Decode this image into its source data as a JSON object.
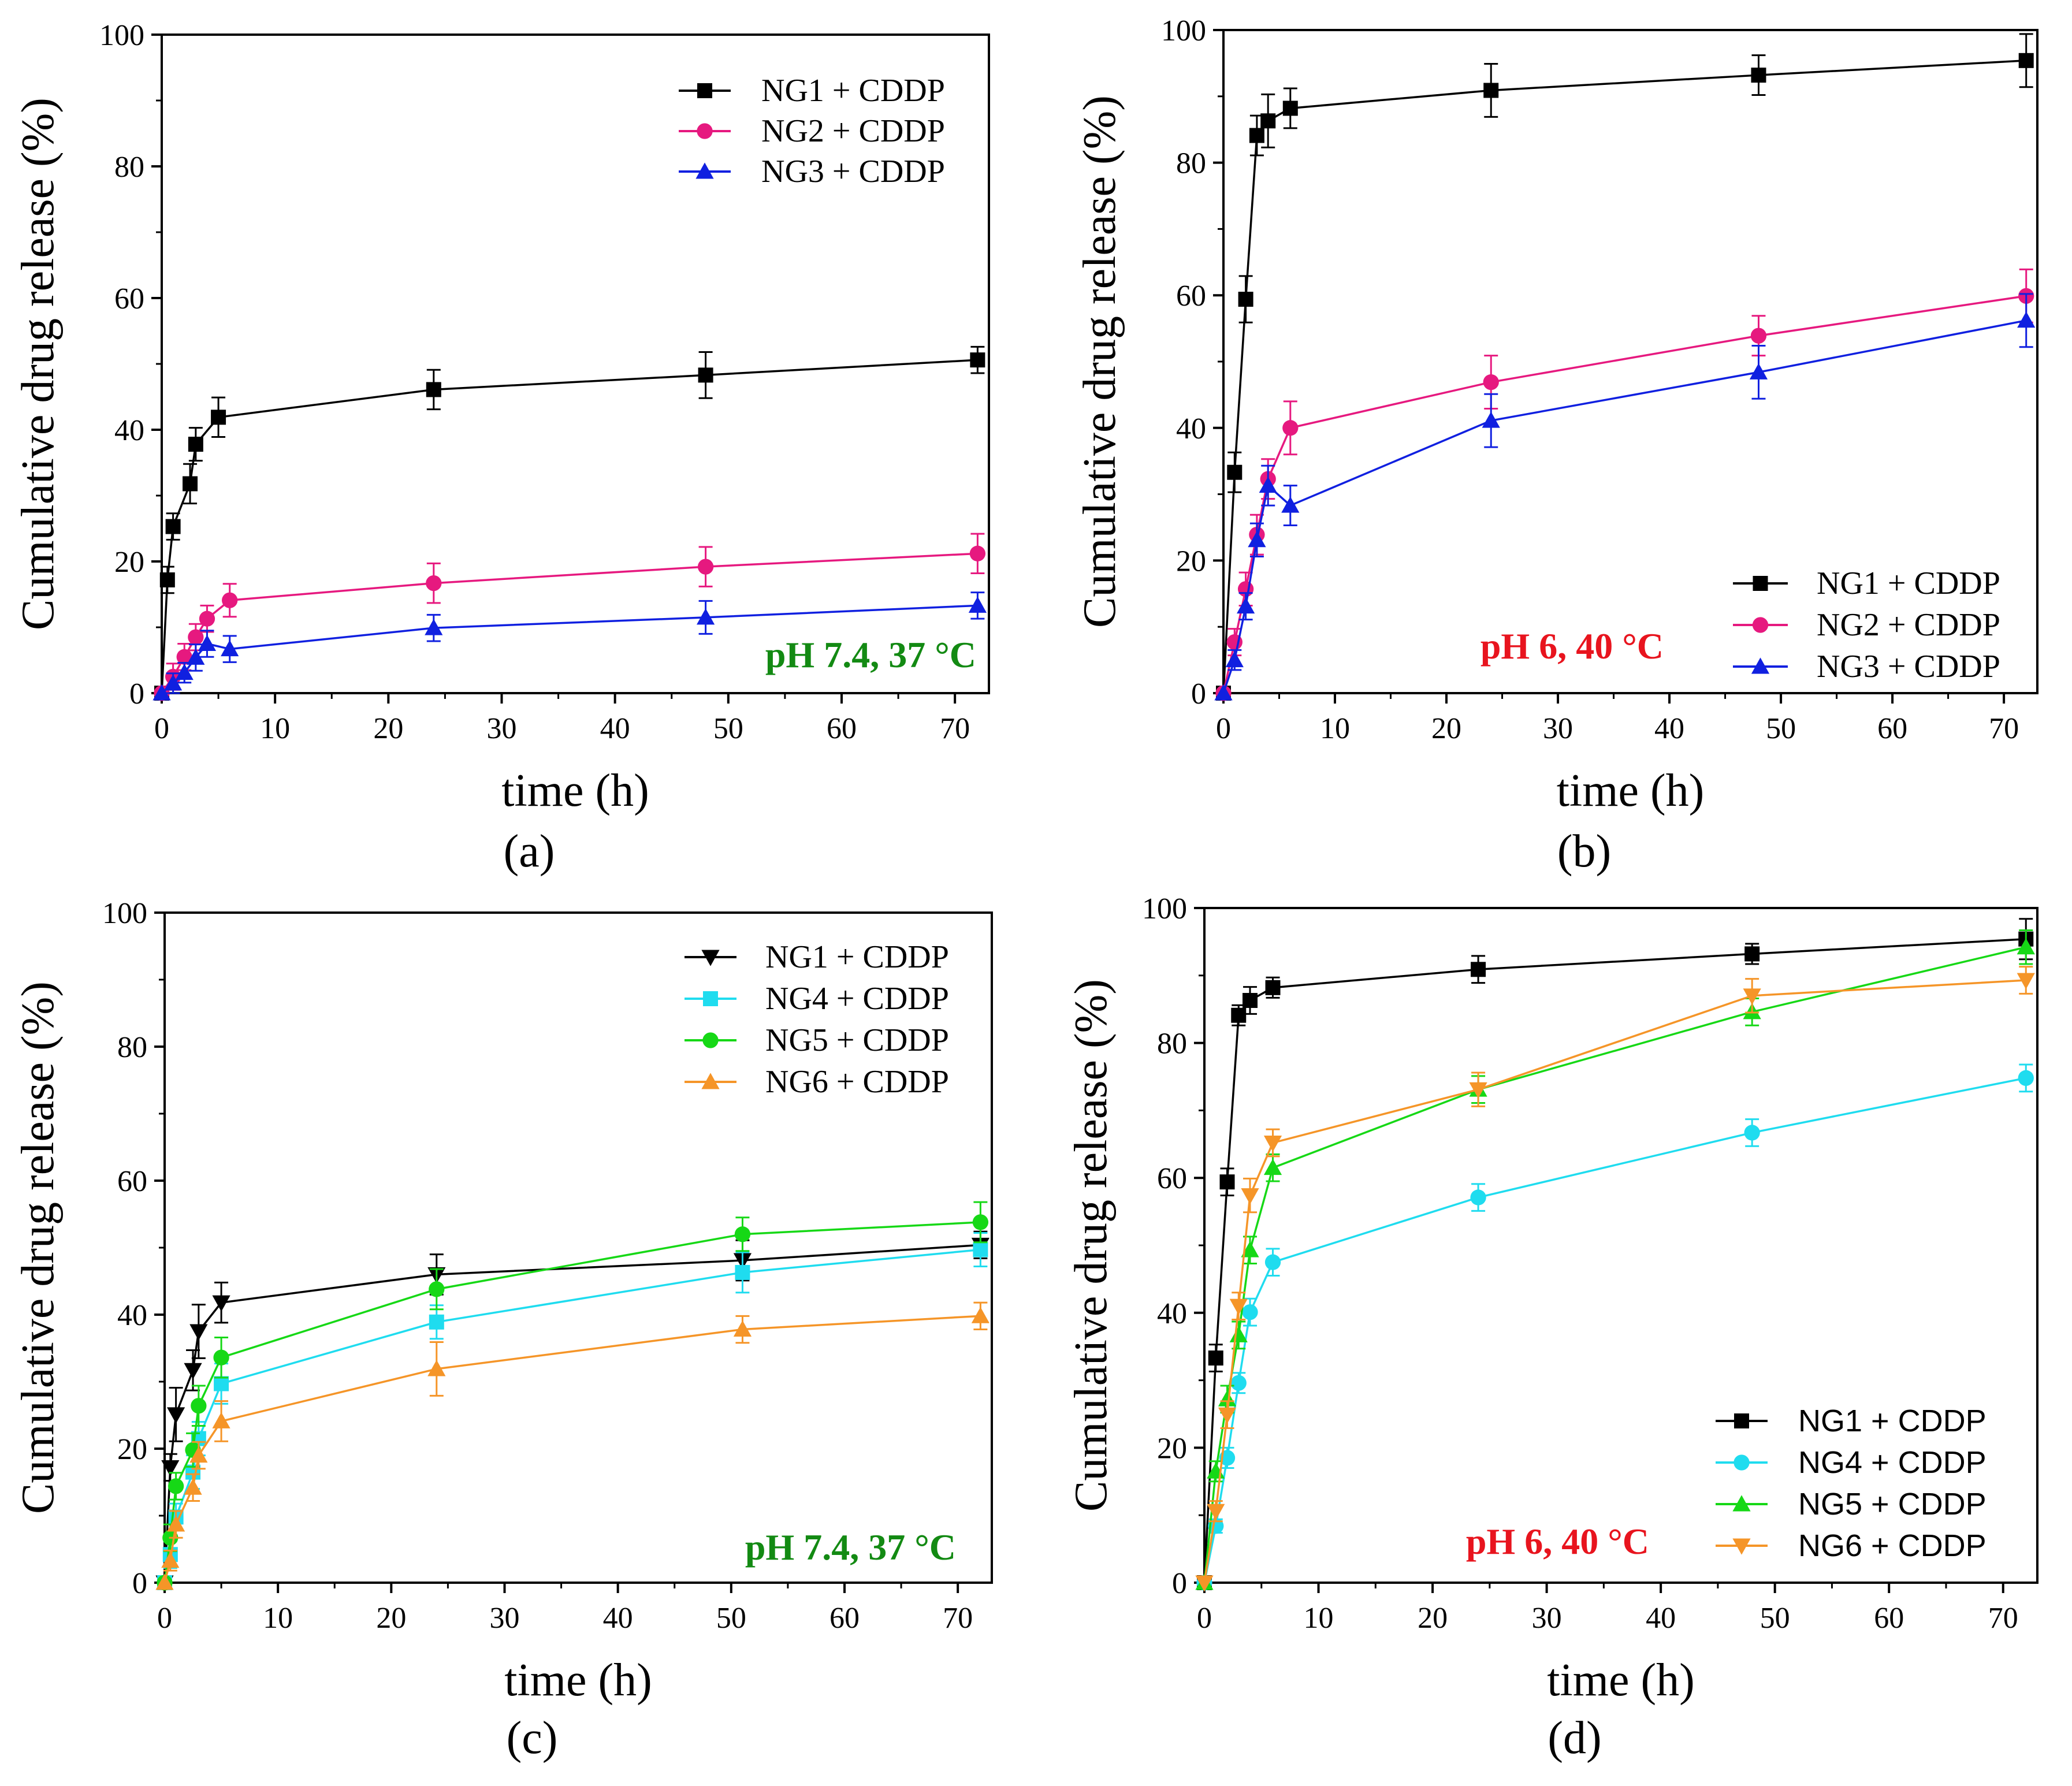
{
  "chart_data": [
    {
      "type": "line",
      "panel_label": "(a)",
      "xlabel": "time (h)",
      "ylabel": "Cumulative drug release (%)",
      "xlim": [
        0,
        73
      ],
      "ylim": [
        0,
        100
      ],
      "xticks": [
        0,
        10,
        20,
        30,
        40,
        50,
        60,
        70
      ],
      "yticks": [
        0,
        20,
        40,
        60,
        80,
        100
      ],
      "annotation": "pH 7.4, 37 °C",
      "annotation_color": "#138a13",
      "legend_position": "top-right",
      "series": [
        {
          "name": "NG1 + CDDP",
          "color": "#000000",
          "marker": "square",
          "x": [
            0,
            0.5,
            1,
            2.5,
            3,
            5,
            24,
            48,
            72
          ],
          "values": [
            0,
            17.2,
            25.3,
            31.8,
            37.8,
            41.9,
            46.1,
            48.3,
            50.6
          ],
          "errors": [
            0,
            2,
            2,
            3,
            2.5,
            3,
            3,
            3.5,
            2
          ]
        },
        {
          "name": "NG2 + CDDP",
          "color": "#e6197f",
          "marker": "circle",
          "x": [
            0,
            1,
            2,
            3,
            4,
            6,
            24,
            48,
            72
          ],
          "values": [
            0,
            2.5,
            5.5,
            8.5,
            11.3,
            14.1,
            16.7,
            19.2,
            21.2
          ],
          "errors": [
            0,
            2,
            2,
            2,
            2,
            2.5,
            3,
            3,
            3
          ]
        },
        {
          "name": "NG3 + CDDP",
          "color": "#1020e0",
          "marker": "triangle-up",
          "x": [
            0,
            1,
            2,
            3,
            4,
            6,
            24,
            48,
            72
          ],
          "values": [
            0,
            1.5,
            3.1,
            5.4,
            7.5,
            6.7,
            9.9,
            11.5,
            13.3
          ],
          "errors": [
            0,
            1.5,
            1.5,
            2,
            2,
            2,
            2,
            2.5,
            2
          ]
        }
      ]
    },
    {
      "type": "line",
      "panel_label": "(b)",
      "xlabel": "time (h)",
      "ylabel": "Cumulative drug release (%)",
      "xlim": [
        0,
        73
      ],
      "ylim": [
        0,
        100
      ],
      "xticks": [
        0,
        10,
        20,
        30,
        40,
        50,
        60,
        70
      ],
      "yticks": [
        0,
        20,
        40,
        60,
        80,
        100
      ],
      "annotation": "pH 6, 40 °C",
      "annotation_color": "#e8141e",
      "legend_position": "bottom-right",
      "series": [
        {
          "name": "NG1 + CDDP",
          "color": "#000000",
          "marker": "square",
          "x": [
            0,
            1,
            2,
            3,
            4,
            6,
            24,
            48,
            72
          ],
          "values": [
            0,
            33.3,
            59.4,
            84.1,
            86.3,
            88.2,
            90.9,
            93.2,
            95.4
          ],
          "errors": [
            0,
            3,
            3.5,
            3,
            4,
            3,
            4,
            3,
            4
          ]
        },
        {
          "name": "NG2 + CDDP",
          "color": "#e6197f",
          "marker": "circle",
          "x": [
            0,
            1,
            2,
            3,
            4,
            6,
            24,
            48,
            72
          ],
          "values": [
            0,
            7.7,
            15.7,
            23.9,
            32.3,
            40.0,
            46.9,
            53.9,
            59.9
          ],
          "errors": [
            0,
            2,
            2.5,
            3,
            3,
            4,
            4,
            3,
            4
          ]
        },
        {
          "name": "NG3 + CDDP",
          "color": "#1020e0",
          "marker": "triangle-up",
          "x": [
            0,
            1,
            2,
            3,
            4,
            6,
            24,
            48,
            72
          ],
          "values": [
            0,
            5.0,
            13.1,
            23.1,
            31.3,
            28.3,
            41.1,
            48.4,
            56.2
          ],
          "errors": [
            0,
            1.5,
            2,
            2.5,
            3,
            3,
            4,
            4,
            4
          ]
        }
      ]
    },
    {
      "type": "line",
      "panel_label": "(c)",
      "xlabel": "time (h)",
      "ylabel": "Cumulative drug release (%)",
      "xlim": [
        0,
        73
      ],
      "ylim": [
        0,
        100
      ],
      "xticks": [
        0,
        10,
        20,
        30,
        40,
        50,
        60,
        70
      ],
      "yticks": [
        0,
        20,
        40,
        60,
        80,
        100
      ],
      "annotation": "pH 7.4, 37 °C",
      "annotation_color": "#138a13",
      "legend_position": "top-right",
      "series": [
        {
          "name": "NG1 + CDDP",
          "color": "#000000",
          "marker": "triangle-down",
          "x": [
            0,
            0.5,
            1,
            2.5,
            3,
            5,
            24,
            51,
            72
          ],
          "values": [
            0,
            17.2,
            25.1,
            31.7,
            37.5,
            41.8,
            46.0,
            48.1,
            50.4
          ],
          "errors": [
            0,
            2,
            4,
            3,
            4,
            3,
            3,
            3,
            2
          ]
        },
        {
          "name": "NG4 + CDDP",
          "color": "#1fdcef",
          "marker": "square",
          "x": [
            0,
            0.5,
            1,
            2.5,
            3,
            5,
            24,
            51,
            72
          ],
          "values": [
            0,
            4.2,
            9.8,
            16.5,
            21.5,
            29.7,
            38.9,
            46.3,
            49.7
          ],
          "errors": [
            0,
            2,
            2,
            2.5,
            2.5,
            3,
            2.5,
            3,
            2.5
          ]
        },
        {
          "name": "NG5 + CDDP",
          "color": "#16d816",
          "marker": "circle",
          "x": [
            0,
            0.5,
            1,
            2.5,
            3,
            5,
            24,
            51,
            72
          ],
          "values": [
            0,
            6.7,
            14.4,
            19.8,
            26.4,
            33.6,
            43.8,
            52.0,
            53.8
          ],
          "errors": [
            0,
            2,
            2,
            2.5,
            3,
            3,
            3,
            2.5,
            3
          ]
        },
        {
          "name": "NG6 + CDDP",
          "color": "#f59528",
          "marker": "triangle-up",
          "x": [
            0,
            0.5,
            1,
            2.5,
            3,
            5,
            24,
            51,
            72
          ],
          "values": [
            0,
            3.3,
            8.7,
            14.2,
            19.0,
            24.1,
            31.9,
            37.8,
            39.8
          ],
          "errors": [
            0,
            1.5,
            2,
            2,
            2,
            3,
            4,
            2,
            2
          ]
        }
      ]
    },
    {
      "type": "line",
      "panel_label": "(d)",
      "xlabel": "time (h)",
      "ylabel": "Cumulative drug release (%)",
      "xlim": [
        0,
        73
      ],
      "ylim": [
        0,
        100
      ],
      "xticks": [
        0,
        10,
        20,
        30,
        40,
        50,
        60,
        70
      ],
      "yticks": [
        0,
        20,
        40,
        60,
        80,
        100
      ],
      "annotation": "pH 6, 40 °C",
      "annotation_color": "#e8141e",
      "legend_position": "bottom-right",
      "series": [
        {
          "name": "NG1 + CDDP",
          "color": "#000000",
          "marker": "square",
          "x": [
            0,
            1,
            2,
            3,
            4,
            6,
            24,
            48,
            72
          ],
          "values": [
            0,
            33.3,
            59.4,
            84.1,
            86.3,
            88.2,
            90.9,
            93.2,
            95.4
          ],
          "errors": [
            0,
            2,
            2,
            1.5,
            2,
            1.5,
            2,
            1.5,
            3
          ]
        },
        {
          "name": "NG4 + CDDP",
          "color": "#1fdcef",
          "marker": "circle",
          "x": [
            0,
            1,
            2,
            3,
            4,
            6,
            24,
            48,
            72
          ],
          "values": [
            0,
            8.4,
            18.5,
            29.6,
            40.1,
            47.5,
            57.1,
            66.7,
            74.8
          ],
          "errors": [
            0,
            1,
            1.5,
            1.5,
            2,
            2,
            2,
            2,
            2
          ]
        },
        {
          "name": "NG5 + CDDP",
          "color": "#16d816",
          "marker": "triangle-up",
          "x": [
            0,
            1,
            2,
            3,
            4,
            6,
            24,
            48,
            72
          ],
          "values": [
            0,
            16.5,
            27.2,
            36.7,
            49.3,
            61.5,
            73.1,
            84.6,
            94.2
          ],
          "errors": [
            0,
            1.5,
            2,
            2,
            2,
            2,
            2,
            2,
            2.5
          ]
        },
        {
          "name": "NG6 + CDDP",
          "color": "#f59528",
          "marker": "triangle-down",
          "x": [
            0,
            1,
            2,
            3,
            4,
            6,
            24,
            48,
            72
          ],
          "values": [
            0,
            10.6,
            24.9,
            41.0,
            57.4,
            65.2,
            73.1,
            87.0,
            89.3
          ],
          "errors": [
            0,
            1.5,
            2,
            2,
            2.5,
            2,
            2.5,
            2.5,
            2
          ]
        }
      ]
    }
  ]
}
